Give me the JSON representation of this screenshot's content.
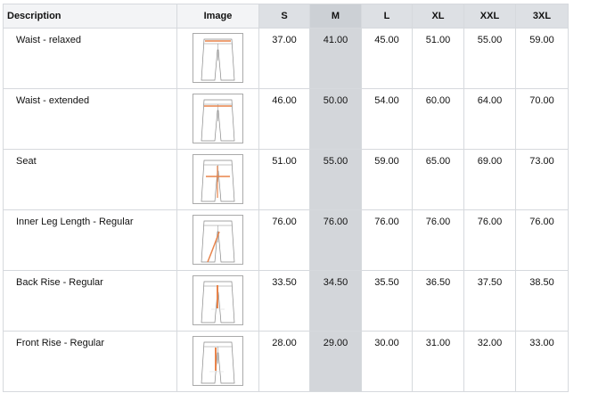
{
  "headers": [
    "Description",
    "Image",
    "S",
    "M",
    "L",
    "XL",
    "XXL",
    "3XL"
  ],
  "highlight_column": "M",
  "accent_color": "#e8834a",
  "rows": [
    {
      "description": "Waist - relaxed",
      "image": "pants-waist-relaxed-diagram",
      "values": [
        "37.00",
        "41.00",
        "45.00",
        "51.00",
        "55.00",
        "59.00"
      ]
    },
    {
      "description": "Waist - extended",
      "image": "pants-waist-extended-diagram",
      "values": [
        "46.00",
        "50.00",
        "54.00",
        "60.00",
        "64.00",
        "70.00"
      ]
    },
    {
      "description": "Seat",
      "image": "pants-seat-diagram",
      "values": [
        "51.00",
        "55.00",
        "59.00",
        "65.00",
        "69.00",
        "73.00"
      ]
    },
    {
      "description": "Inner Leg Length - Regular",
      "image": "pants-inner-leg-diagram",
      "values": [
        "76.00",
        "76.00",
        "76.00",
        "76.00",
        "76.00",
        "76.00"
      ]
    },
    {
      "description": "Back Rise - Regular",
      "image": "pants-back-rise-diagram",
      "values": [
        "33.50",
        "34.50",
        "35.50",
        "36.50",
        "37.50",
        "38.50"
      ]
    },
    {
      "description": "Front Rise - Regular",
      "image": "pants-front-rise-diagram",
      "values": [
        "28.00",
        "29.00",
        "30.00",
        "31.00",
        "32.00",
        "33.00"
      ]
    }
  ]
}
